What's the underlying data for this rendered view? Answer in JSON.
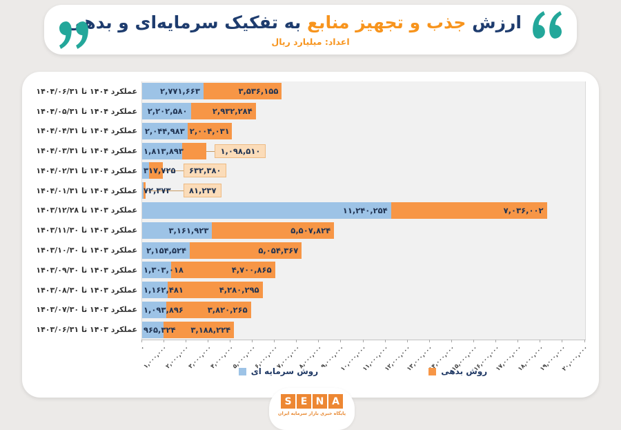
{
  "header": {
    "title_prefix": "ارزش",
    "title_highlight": "جذب و تجهیز منابع",
    "title_suffix": "به تفکیک سرمایه‌ای و بدهی",
    "subtitle": "اعداد: میلیارد ریال",
    "colors": {
      "navy": "#1E3C6E",
      "orange": "#F7941D",
      "teal": "#23A79A"
    }
  },
  "chart_data": {
    "type": "bar",
    "orientation": "horizontal_stacked",
    "title": "ارزش جذب و تجهیز منابع به تفکیک سرمایه‌ای و بدهی",
    "unit_note": "اعداد: میلیارد ریال",
    "xlim": [
      0,
      20000000
    ],
    "grid": false,
    "x_ticks": [
      "۰",
      "۱,۰۰۰,۰۰۰",
      "۲,۰۰۰,۰۰۰",
      "۳,۰۰۰,۰۰۰",
      "۴,۰۰۰,۰۰۰",
      "۵,۰۰۰,۰۰۰",
      "۶,۰۰۰,۰۰۰",
      "۷,۰۰۰,۰۰۰",
      "۸,۰۰۰,۰۰۰",
      "۹,۰۰۰,۰۰۰",
      "۱۰,۰۰۰,۰۰۰",
      "۱۱,۰۰۰,۰۰۰",
      "۱۲,۰۰۰,۰۰۰",
      "۱۳,۰۰۰,۰۰۰",
      "۱۴,۰۰۰,۰۰۰",
      "۱۵,۰۰۰,۰۰۰",
      "۱۶,۰۰۰,۰۰۰",
      "۱۷,۰۰۰,۰۰۰",
      "۱۸,۰۰۰,۰۰۰",
      "۱۹,۰۰۰,۰۰۰",
      "۲۰,۰۰۰,۰۰۰"
    ],
    "categories": [
      "عملکرد ۱۴۰۴ تا ۱۴۰۴/۰۶/۳۱",
      "عملکرد ۱۴۰۴ تا ۱۴۰۴/۰۵/۳۱",
      "عملکرد ۱۴۰۴ تا ۱۴۰۴/۰۴/۳۱",
      "عملکرد ۱۴۰۴ تا ۱۴۰۴/۰۳/۳۱",
      "عملکرد ۱۴۰۴ تا ۱۴۰۴/۰۲/۳۱",
      "عملکرد ۱۴۰۴ تا ۱۴۰۴/۰۱/۳۱",
      "عملکرد ۱۴۰۳ تا ۱۴۰۳/۱۲/۲۸",
      "عملکرد ۱۴۰۳ تا ۱۴۰۳/۱۱/۳۰",
      "عملکرد ۱۴۰۳ تا ۱۴۰۳/۱۰/۳۰",
      "عملکرد ۱۴۰۳ تا ۱۴۰۳/۰۹/۳۰",
      "عملکرد ۱۴۰۳ تا ۱۴۰۳/۰۸/۳۰",
      "عملکرد ۱۴۰۳ تا ۱۴۰۳/۰۷/۳۰",
      "عملکرد ۱۴۰۳ تا ۱۴۰۳/۰۶/۳۱"
    ],
    "series": [
      {
        "name": "روش سرمایه ای",
        "color": "#9DC3E6",
        "values": [
          2771663,
          2202580,
          2044983,
          1813893,
          317725,
          72373,
          11240254,
          3161923,
          2154524,
          1303018,
          1162481,
          1093896,
          965324
        ],
        "labels": [
          "۲,۷۷۱,۶۶۳",
          "۲,۲۰۲,۵۸۰",
          "۲,۰۴۴,۹۸۳",
          "۱,۸۱۳,۸۹۳",
          "۳۱۷,۷۲۵",
          "۷۲,۳۷۳",
          "۱۱,۲۴۰,۲۵۴",
          "۳,۱۶۱,۹۲۳",
          "۲,۱۵۴,۵۲۴",
          "۱,۳۰۳,۰۱۸",
          "۱,۱۶۲,۴۸۱",
          "۱,۰۹۳,۸۹۶",
          "۹۶۵,۳۲۴"
        ]
      },
      {
        "name": "روش بدهی",
        "color": "#F79646",
        "values": [
          3536155,
          2932284,
          2004031,
          1098510,
          632380,
          81237,
          7036002,
          5507824,
          5054367,
          4700865,
          4280295,
          3820265,
          3188224
        ],
        "labels": [
          "۳,۵۳۶,۱۵۵",
          "۲,۹۳۲,۲۸۴",
          "۲,۰۰۴,۰۳۱",
          "۱,۰۹۸,۵۱۰",
          "۶۳۲,۳۸۰",
          "۸۱,۲۳۷",
          "۷,۰۳۶,۰۰۲",
          "۵,۵۰۷,۸۲۴",
          "۵,۰۵۴,۳۶۷",
          "۴,۷۰۰,۸۶۵",
          "۴,۲۸۰,۲۹۵",
          "۳,۸۲۰,۲۶۵",
          "۳,۱۸۸,۲۲۴"
        ]
      }
    ],
    "callout_rows": [
      3,
      4,
      5
    ],
    "callout_style": {
      "background": "#FBDCB9",
      "border": "#EDBA82"
    },
    "legend": {
      "position": "bottom",
      "items": [
        {
          "label": "روش سرمایه ای",
          "color": "#9DC3E6"
        },
        {
          "label": "روش بدهی",
          "color": "#F79646"
        }
      ]
    }
  },
  "footer": {
    "logo_letters": [
      "S",
      "E",
      "N",
      "A"
    ],
    "logo_color": "#ED8733",
    "tagline": "پایگاه خبری بازار سرمایه ایران"
  }
}
